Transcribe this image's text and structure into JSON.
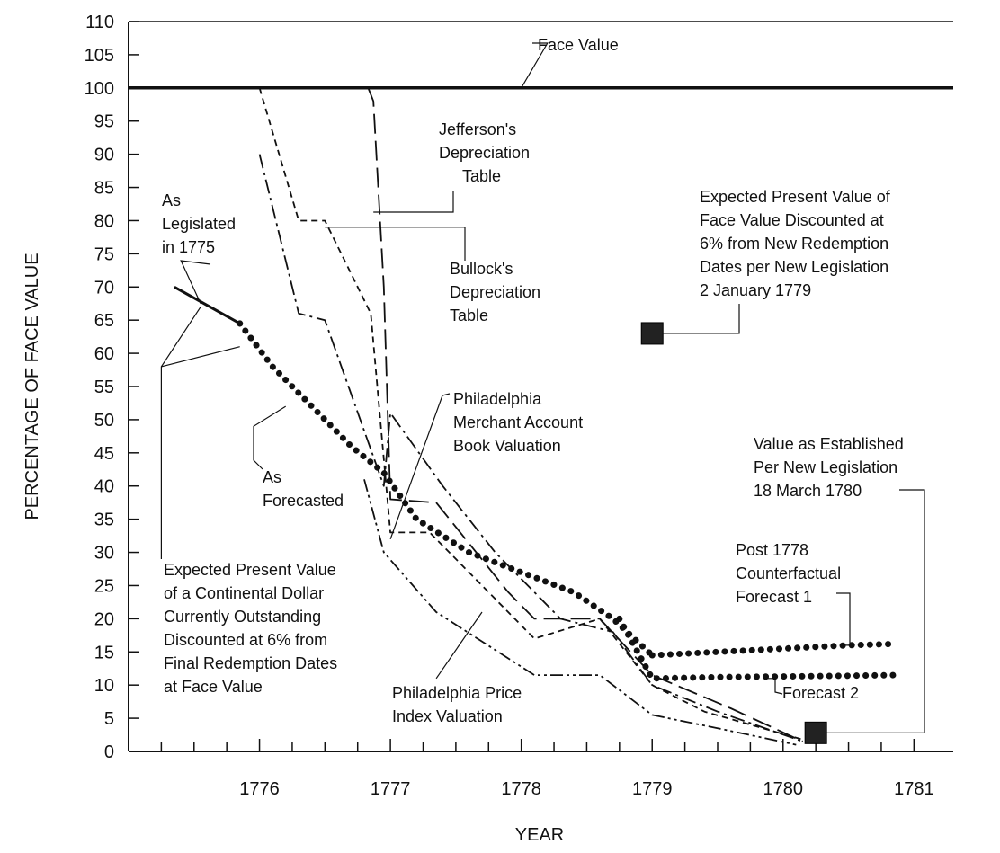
{
  "chart_data": {
    "type": "line",
    "title": "",
    "xlabel": "YEAR",
    "ylabel": "PERCENTAGE OF FACE VALUE",
    "xlim": [
      1775.0,
      1781.3
    ],
    "ylim": [
      0,
      110
    ],
    "y_ticks": [
      0,
      5,
      10,
      15,
      20,
      25,
      30,
      35,
      40,
      45,
      50,
      55,
      60,
      65,
      70,
      75,
      80,
      85,
      90,
      95,
      100,
      105,
      110
    ],
    "x_tick_labels": [
      "1776",
      "1777",
      "1778",
      "1779",
      "1780",
      "1781"
    ],
    "x_ticks": [
      1776,
      1777,
      1778,
      1779,
      1780,
      1781
    ],
    "series": [
      {
        "name": "Face Value",
        "style": "solid-thick",
        "x": [
          1775.0,
          1781.3
        ],
        "y": [
          100,
          100
        ]
      },
      {
        "name": "As Legislated in 1775",
        "style": "solid",
        "x": [
          1775.35,
          1775.85
        ],
        "y": [
          70,
          64.5
        ]
      },
      {
        "name": "As Forecasted",
        "style": "dotted-thick",
        "x": [
          1775.85,
          1776.1,
          1776.4,
          1776.7,
          1776.95,
          1777.2,
          1777.6,
          1778.0,
          1778.4,
          1778.7,
          1779.0
        ],
        "y": [
          64.5,
          58,
          52,
          46,
          42,
          35,
          30,
          27,
          24,
          20,
          14.5
        ]
      },
      {
        "name": "Post 1778 Counterfactual Forecast 1",
        "style": "dotted-thick",
        "x": [
          1779.0,
          1779.5,
          1780.0,
          1780.5,
          1780.85
        ],
        "y": [
          14.5,
          15,
          15.5,
          16,
          16.2
        ]
      },
      {
        "name": "Forecast 2",
        "style": "dotted-thick",
        "x": [
          1778.75,
          1779.0,
          1779.5,
          1780.0,
          1780.5,
          1780.85
        ],
        "y": [
          20,
          11,
          11.2,
          11.3,
          11.4,
          11.5
        ]
      },
      {
        "name": "Jefferson's Depreciation Table",
        "style": "long-dash",
        "x": [
          1776.83,
          1776.87,
          1776.95,
          1777.0,
          1777.35,
          1777.9,
          1778.1,
          1778.6,
          1779.0,
          1779.6,
          1780.15
        ],
        "y": [
          100,
          98,
          70,
          38,
          37.5,
          24,
          20,
          20,
          11.5,
          6.5,
          1.5
        ]
      },
      {
        "name": "Bullock's Depreciation Table",
        "style": "short-dash",
        "x": [
          1776.0,
          1776.3,
          1776.5,
          1776.85,
          1777.0,
          1777.3,
          1778.1,
          1778.6,
          1779.0,
          1779.4,
          1780.2
        ],
        "y": [
          100,
          80,
          80,
          66,
          33,
          33,
          17,
          20,
          10,
          6,
          1.5
        ]
      },
      {
        "name": "Philadelphia Merchant Account Book Valuation",
        "style": "dash-dot",
        "x": [
          1776.0,
          1776.3,
          1776.5,
          1776.95,
          1777.0,
          1777.4,
          1777.8,
          1778.3,
          1778.7,
          1779.0,
          1779.5,
          1780.15
        ],
        "y": [
          90,
          66,
          65,
          40,
          51,
          40,
          30,
          20,
          18,
          10,
          6,
          1.5
        ]
      },
      {
        "name": "Philadelphia Price Index Valuation",
        "style": "dash-dot-dot",
        "x": [
          1776.8,
          1776.95,
          1777.35,
          1778.1,
          1778.6,
          1779.0,
          1779.5,
          1780.1
        ],
        "y": [
          41,
          30,
          21,
          11.5,
          11.5,
          5.5,
          3.5,
          1
        ]
      }
    ],
    "points": [
      {
        "name": "Expected Present Value of Face Value Discounted at 6% from New Redemption Dates per New Legislation 2 January 1779",
        "x": 1779.0,
        "y": 63
      },
      {
        "name": "Value as Established Per New Legislation 18 March 1780",
        "x": 1780.25,
        "y": 2.8
      }
    ],
    "annotations": {
      "face_value": "Face Value",
      "jefferson": [
        "Jefferson's",
        "Depreciation",
        "Table"
      ],
      "bullock": [
        "Bullock's",
        "Depreciation",
        "Table"
      ],
      "legislated": [
        "As",
        "Legislated",
        "in 1775"
      ],
      "forecasted": [
        "As",
        "Forecasted"
      ],
      "merchant": [
        "Philadelphia",
        "Merchant Account",
        "Book Valuation"
      ],
      "price_index": [
        "Philadelphia Price",
        "Index Valuation"
      ],
      "expected_1779": [
        "Expected Present Value of",
        "Face Value Discounted at",
        "6% from New Redemption",
        "Dates per New Legislation",
        "2 January 1779"
      ],
      "expected_dollar": [
        "Expected Present Value",
        "of a Continental Dollar",
        "Currently Outstanding",
        "Discounted at 6% from",
        "Final Redemption Dates",
        "at Face Value"
      ],
      "established_1780": [
        "Value as Established",
        "Per New Legislation",
        "18 March 1780"
      ],
      "post_1778": [
        "Post 1778",
        "Counterfactual",
        "Forecast 1"
      ],
      "forecast2": "Forecast 2"
    }
  }
}
